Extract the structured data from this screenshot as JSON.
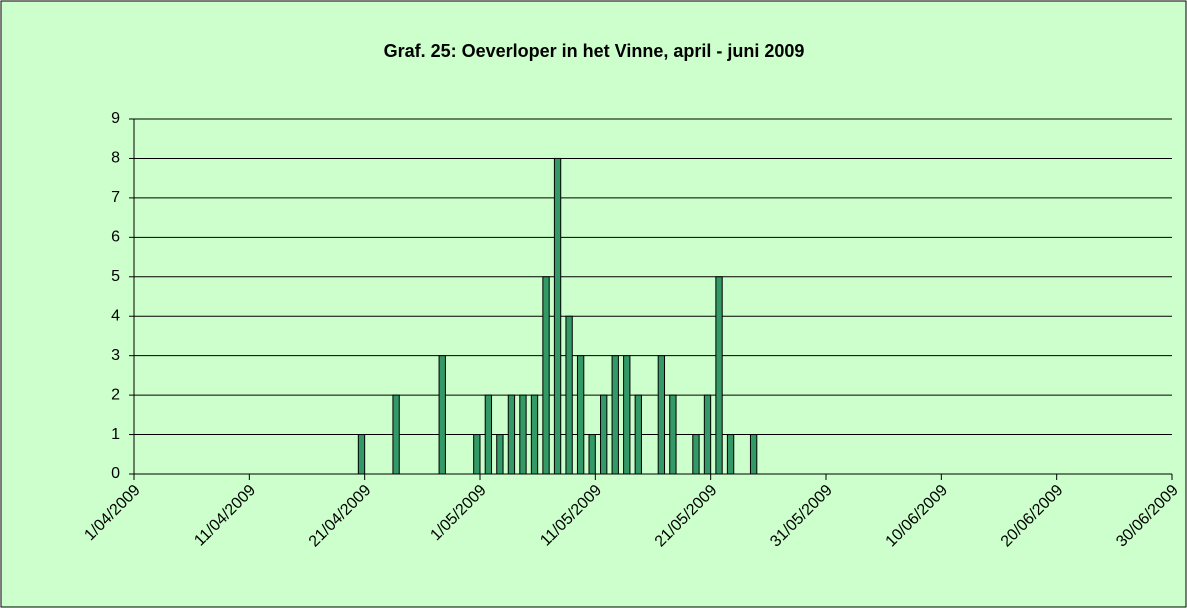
{
  "chart_data": {
    "type": "bar",
    "title": "Graf. 25: Oeverloper in het Vinne, april - juni 2009",
    "x": [
      "21/04/2009",
      "24/04/2009",
      "28/04/2009",
      "1/05/2009",
      "2/05/2009",
      "3/05/2009",
      "4/05/2009",
      "5/05/2009",
      "6/05/2009",
      "7/05/2009",
      "8/05/2009",
      "9/05/2009",
      "10/05/2009",
      "11/05/2009",
      "12/05/2009",
      "13/05/2009",
      "14/05/2009",
      "15/05/2009",
      "17/05/2009",
      "18/05/2009",
      "20/05/2009",
      "21/05/2009",
      "22/05/2009",
      "23/05/2009",
      "25/05/2009"
    ],
    "values": [
      1,
      2,
      3,
      1,
      2,
      1,
      2,
      2,
      2,
      5,
      8,
      4,
      3,
      1,
      2,
      3,
      3,
      2,
      3,
      2,
      1,
      2,
      5,
      1,
      1
    ],
    "color": "#339966",
    "xlim": [
      "1/04/2009",
      "30/06/2009"
    ],
    "xticks": [
      "1/04/2009",
      "11/04/2009",
      "21/04/2009",
      "1/05/2009",
      "11/05/2009",
      "21/05/2009",
      "31/05/2009",
      "10/06/2009",
      "20/06/2009",
      "30/06/2009"
    ],
    "ylim": [
      0,
      9
    ],
    "yticks": [
      0,
      1,
      2,
      3,
      4,
      5,
      6,
      7,
      8,
      9
    ],
    "grid": true
  }
}
